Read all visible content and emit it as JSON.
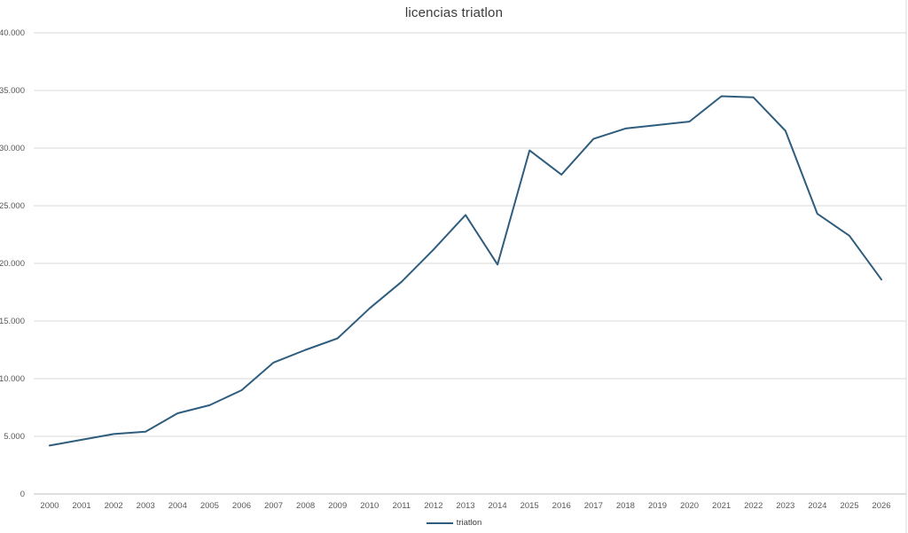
{
  "chart_data": {
    "type": "line",
    "title": "licencias triatlon",
    "xlabel": "",
    "ylabel": "",
    "categories": [
      "2000",
      "2001",
      "2002",
      "2003",
      "2004",
      "2005",
      "2006",
      "2007",
      "2008",
      "2009",
      "2010",
      "2011",
      "2012",
      "2013",
      "2014",
      "2015",
      "2016",
      "2017",
      "2018",
      "2019",
      "2020",
      "2021",
      "2022",
      "2023",
      "2024",
      "2025",
      "2026"
    ],
    "series": [
      {
        "name": "triatlon",
        "color": "#2f5d7e",
        "values": [
          4200,
          4700,
          5200,
          5400,
          7000,
          7700,
          9000,
          11400,
          12500,
          13500,
          16100,
          18400,
          21200,
          24200,
          19900,
          29800,
          27700,
          30800,
          31700,
          32000,
          32300,
          34500,
          34400,
          31500,
          24300,
          22400,
          18600
        ]
      }
    ],
    "ylim": [
      0,
      40000
    ],
    "ytick_step": 5000,
    "ytick_labels": [
      "0",
      "5.000",
      "10.000",
      "15.000",
      "20.000",
      "25.000",
      "30.000",
      "35.000",
      "40.000"
    ],
    "grid": true,
    "legend_position": "bottom"
  },
  "colors": {
    "gridline": "#d9d9d9",
    "axis_line": "#bfbfbf",
    "tick_text": "#595959",
    "title_text": "#3b3b3b",
    "background": "#ffffff"
  }
}
